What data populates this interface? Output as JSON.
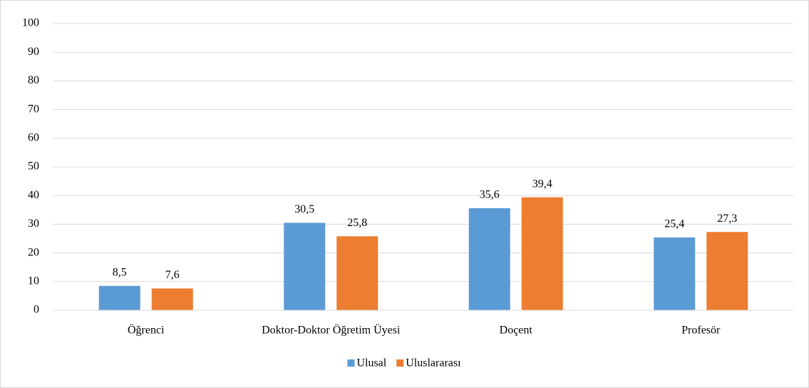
{
  "chart_data": {
    "type": "bar",
    "categories": [
      "Öğrenci",
      "Doktor-Doktor Öğretim Üyesi",
      "Doçent",
      "Profesör"
    ],
    "series": [
      {
        "name": "Ulusal",
        "color": "#5b9bd5",
        "values": [
          8.5,
          30.5,
          35.6,
          25.4
        ],
        "value_labels": [
          "8,5",
          "30,5",
          "35,6",
          "25,4"
        ]
      },
      {
        "name": "Uluslararası",
        "color": "#ed7d31",
        "values": [
          7.6,
          25.8,
          39.4,
          27.3
        ],
        "value_labels": [
          "7,6",
          "25,8",
          "39,4",
          "27,3"
        ]
      }
    ],
    "ylim": [
      0,
      100
    ],
    "yticks": [
      0,
      10,
      20,
      30,
      40,
      50,
      60,
      70,
      80,
      90,
      100
    ],
    "grid": true,
    "legend": "bottom"
  }
}
